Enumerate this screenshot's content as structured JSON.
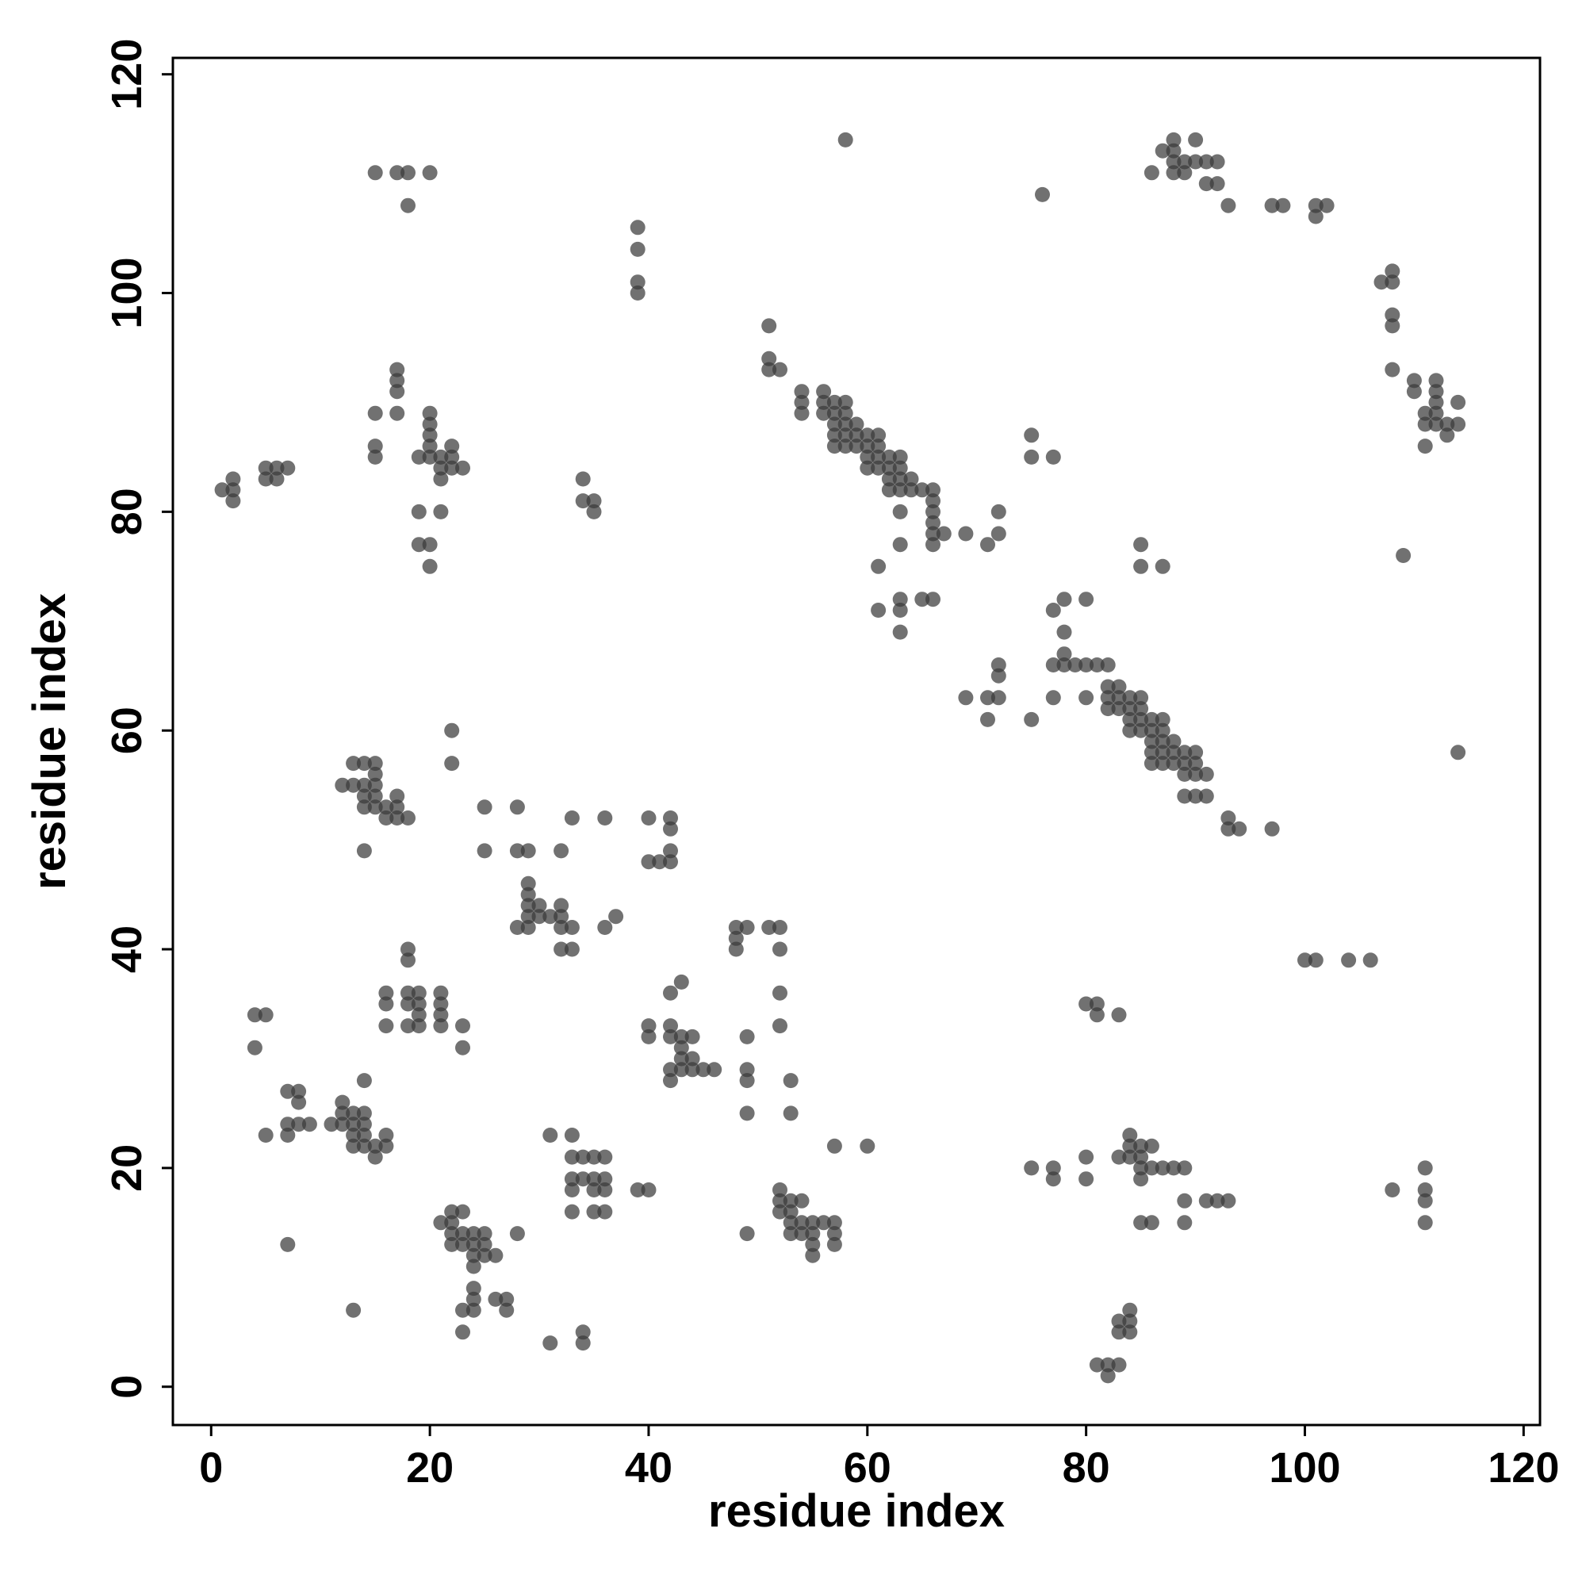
{
  "chart_data": {
    "type": "scatter",
    "title": "",
    "xlabel": "residue index",
    "ylabel": "residue index",
    "xlim": [
      -3.5,
      121.5
    ],
    "ylim": [
      -3.5,
      121.5
    ],
    "xticks": [
      "0",
      "20",
      "40",
      "60",
      "80",
      "100",
      "120"
    ],
    "yticks": [
      "0",
      "20",
      "40",
      "60",
      "80",
      "100",
      "120"
    ],
    "grid": false,
    "legend": "none",
    "point_color": "#3a3a3a",
    "points": [
      [
        58,
        114
      ],
      [
        15,
        111
      ],
      [
        17,
        111
      ],
      [
        18,
        111
      ],
      [
        20,
        111
      ],
      [
        18,
        108
      ],
      [
        76,
        109
      ],
      [
        39,
        106
      ],
      [
        39,
        104
      ],
      [
        39,
        101
      ],
      [
        39,
        100
      ],
      [
        51,
        97
      ],
      [
        51,
        94
      ],
      [
        51,
        93
      ],
      [
        52,
        93
      ],
      [
        54,
        91
      ],
      [
        54,
        90
      ],
      [
        54,
        89
      ],
      [
        56,
        91
      ],
      [
        56,
        90
      ],
      [
        56,
        89
      ],
      [
        57,
        90
      ],
      [
        57,
        89
      ],
      [
        57,
        88
      ],
      [
        57,
        87
      ],
      [
        57,
        86
      ],
      [
        58,
        90
      ],
      [
        58,
        89
      ],
      [
        58,
        88
      ],
      [
        58,
        87
      ],
      [
        58,
        86
      ],
      [
        59,
        88
      ],
      [
        59,
        87
      ],
      [
        59,
        86
      ],
      [
        60,
        87
      ],
      [
        60,
        86
      ],
      [
        60,
        85
      ],
      [
        60,
        84
      ],
      [
        61,
        87
      ],
      [
        61,
        86
      ],
      [
        61,
        85
      ],
      [
        61,
        84
      ],
      [
        62,
        85
      ],
      [
        62,
        84
      ],
      [
        62,
        83
      ],
      [
        62,
        82
      ],
      [
        63,
        85
      ],
      [
        63,
        84
      ],
      [
        63,
        83
      ],
      [
        63,
        82
      ],
      [
        63,
        80
      ],
      [
        64,
        83
      ],
      [
        64,
        82
      ],
      [
        65,
        82
      ],
      [
        66,
        82
      ],
      [
        66,
        81
      ],
      [
        66,
        80
      ],
      [
        66,
        79
      ],
      [
        66,
        78
      ],
      [
        66,
        77
      ],
      [
        67,
        78
      ],
      [
        69,
        78
      ],
      [
        71,
        77
      ],
      [
        72,
        80
      ],
      [
        72,
        78
      ],
      [
        61,
        75
      ],
      [
        61,
        71
      ],
      [
        63,
        72
      ],
      [
        63,
        71
      ],
      [
        63,
        69
      ],
      [
        63,
        77
      ],
      [
        65,
        72
      ],
      [
        66,
        72
      ],
      [
        15,
        89
      ],
      [
        15,
        86
      ],
      [
        15,
        85
      ],
      [
        17,
        93
      ],
      [
        17,
        92
      ],
      [
        17,
        91
      ],
      [
        17,
        89
      ],
      [
        19,
        85
      ],
      [
        20,
        89
      ],
      [
        20,
        88
      ],
      [
        20,
        87
      ],
      [
        20,
        86
      ],
      [
        20,
        85
      ],
      [
        21,
        85
      ],
      [
        21,
        84
      ],
      [
        21,
        83
      ],
      [
        22,
        86
      ],
      [
        22,
        85
      ],
      [
        22,
        84
      ],
      [
        23,
        84
      ],
      [
        19,
        80
      ],
      [
        21,
        80
      ],
      [
        19,
        77
      ],
      [
        20,
        77
      ],
      [
        20,
        75
      ],
      [
        1,
        82
      ],
      [
        2,
        83
      ],
      [
        2,
        82
      ],
      [
        2,
        81
      ],
      [
        5,
        84
      ],
      [
        5,
        83
      ],
      [
        6,
        84
      ],
      [
        6,
        83
      ],
      [
        7,
        84
      ],
      [
        34,
        83
      ],
      [
        34,
        81
      ],
      [
        35,
        81
      ],
      [
        35,
        80
      ],
      [
        75,
        87
      ],
      [
        75,
        85
      ],
      [
        77,
        85
      ],
      [
        85,
        77
      ],
      [
        85,
        75
      ],
      [
        87,
        75
      ],
      [
        87,
        113
      ],
      [
        88,
        114
      ],
      [
        88,
        113
      ],
      [
        88,
        112
      ],
      [
        88,
        111
      ],
      [
        89,
        112
      ],
      [
        89,
        111
      ],
      [
        90,
        114
      ],
      [
        90,
        112
      ],
      [
        91,
        112
      ],
      [
        91,
        110
      ],
      [
        92,
        112
      ],
      [
        92,
        110
      ],
      [
        93,
        108
      ],
      [
        86,
        111
      ],
      [
        97,
        108
      ],
      [
        98,
        108
      ],
      [
        101,
        108
      ],
      [
        101,
        107
      ],
      [
        102,
        108
      ],
      [
        107,
        101
      ],
      [
        108,
        102
      ],
      [
        108,
        101
      ],
      [
        108,
        98
      ],
      [
        108,
        97
      ],
      [
        108,
        93
      ],
      [
        110,
        92
      ],
      [
        110,
        91
      ],
      [
        111,
        89
      ],
      [
        111,
        88
      ],
      [
        111,
        86
      ],
      [
        112,
        92
      ],
      [
        112,
        91
      ],
      [
        112,
        90
      ],
      [
        112,
        89
      ],
      [
        112,
        88
      ],
      [
        113,
        88
      ],
      [
        113,
        87
      ],
      [
        114,
        90
      ],
      [
        114,
        88
      ],
      [
        109,
        76
      ],
      [
        77,
        71
      ],
      [
        78,
        72
      ],
      [
        80,
        72
      ],
      [
        77,
        66
      ],
      [
        77,
        63
      ],
      [
        78,
        69
      ],
      [
        78,
        67
      ],
      [
        78,
        66
      ],
      [
        79,
        66
      ],
      [
        80,
        66
      ],
      [
        80,
        63
      ],
      [
        81,
        66
      ],
      [
        82,
        66
      ],
      [
        82,
        64
      ],
      [
        82,
        63
      ],
      [
        82,
        62
      ],
      [
        83,
        64
      ],
      [
        83,
        63
      ],
      [
        83,
        62
      ],
      [
        84,
        63
      ],
      [
        84,
        62
      ],
      [
        84,
        61
      ],
      [
        84,
        60
      ],
      [
        85,
        63
      ],
      [
        85,
        62
      ],
      [
        85,
        61
      ],
      [
        85,
        60
      ],
      [
        86,
        61
      ],
      [
        86,
        60
      ],
      [
        86,
        59
      ],
      [
        86,
        58
      ],
      [
        86,
        57
      ],
      [
        87,
        61
      ],
      [
        87,
        60
      ],
      [
        87,
        59
      ],
      [
        87,
        58
      ],
      [
        87,
        57
      ],
      [
        88,
        59
      ],
      [
        88,
        58
      ],
      [
        88,
        57
      ],
      [
        89,
        58
      ],
      [
        89,
        57
      ],
      [
        89,
        56
      ],
      [
        89,
        54
      ],
      [
        90,
        58
      ],
      [
        90,
        57
      ],
      [
        90,
        56
      ],
      [
        90,
        54
      ],
      [
        91,
        56
      ],
      [
        91,
        54
      ],
      [
        93,
        52
      ],
      [
        93,
        51
      ],
      [
        94,
        51
      ],
      [
        97,
        51
      ],
      [
        75,
        61
      ],
      [
        69,
        63
      ],
      [
        71,
        63
      ],
      [
        71,
        61
      ],
      [
        72,
        66
      ],
      [
        72,
        65
      ],
      [
        72,
        63
      ],
      [
        114,
        58
      ],
      [
        22,
        60
      ],
      [
        22,
        57
      ],
      [
        12,
        55
      ],
      [
        13,
        57
      ],
      [
        13,
        55
      ],
      [
        14,
        57
      ],
      [
        14,
        55
      ],
      [
        14,
        54
      ],
      [
        14,
        53
      ],
      [
        15,
        57
      ],
      [
        15,
        56
      ],
      [
        15,
        55
      ],
      [
        15,
        54
      ],
      [
        15,
        53
      ],
      [
        16,
        53
      ],
      [
        16,
        52
      ],
      [
        17,
        54
      ],
      [
        17,
        53
      ],
      [
        17,
        52
      ],
      [
        18,
        52
      ],
      [
        14,
        49
      ],
      [
        25,
        53
      ],
      [
        25,
        49
      ],
      [
        28,
        53
      ],
      [
        28,
        49
      ],
      [
        29,
        49
      ],
      [
        29,
        46
      ],
      [
        29,
        45
      ],
      [
        29,
        44
      ],
      [
        29,
        43
      ],
      [
        29,
        42
      ],
      [
        28,
        42
      ],
      [
        30,
        44
      ],
      [
        30,
        43
      ],
      [
        31,
        43
      ],
      [
        32,
        49
      ],
      [
        32,
        44
      ],
      [
        32,
        43
      ],
      [
        32,
        42
      ],
      [
        32,
        40
      ],
      [
        33,
        42
      ],
      [
        33,
        40
      ],
      [
        33,
        52
      ],
      [
        36,
        52
      ],
      [
        36,
        42
      ],
      [
        37,
        43
      ],
      [
        40,
        52
      ],
      [
        40,
        48
      ],
      [
        41,
        48
      ],
      [
        42,
        52
      ],
      [
        42,
        51
      ],
      [
        42,
        49
      ],
      [
        42,
        48
      ],
      [
        48,
        42
      ],
      [
        48,
        41
      ],
      [
        48,
        40
      ],
      [
        49,
        42
      ],
      [
        51,
        42
      ],
      [
        52,
        42
      ],
      [
        52,
        40
      ],
      [
        52,
        36
      ],
      [
        52,
        33
      ],
      [
        100,
        39
      ],
      [
        101,
        39
      ],
      [
        104,
        39
      ],
      [
        106,
        39
      ],
      [
        18,
        40
      ],
      [
        18,
        39
      ],
      [
        16,
        36
      ],
      [
        16,
        35
      ],
      [
        16,
        33
      ],
      [
        18,
        36
      ],
      [
        18,
        35
      ],
      [
        18,
        33
      ],
      [
        19,
        36
      ],
      [
        19,
        35
      ],
      [
        19,
        34
      ],
      [
        19,
        33
      ],
      [
        21,
        36
      ],
      [
        21,
        35
      ],
      [
        21,
        34
      ],
      [
        21,
        33
      ],
      [
        23,
        33
      ],
      [
        23,
        31
      ],
      [
        4,
        34
      ],
      [
        4,
        31
      ],
      [
        5,
        34
      ],
      [
        40,
        33
      ],
      [
        40,
        32
      ],
      [
        42,
        36
      ],
      [
        42,
        33
      ],
      [
        42,
        32
      ],
      [
        42,
        29
      ],
      [
        42,
        28
      ],
      [
        43,
        37
      ],
      [
        43,
        32
      ],
      [
        43,
        31
      ],
      [
        43,
        30
      ],
      [
        43,
        29
      ],
      [
        44,
        32
      ],
      [
        44,
        30
      ],
      [
        44,
        29
      ],
      [
        45,
        29
      ],
      [
        46,
        29
      ],
      [
        49,
        32
      ],
      [
        49,
        29
      ],
      [
        49,
        28
      ],
      [
        49,
        25
      ],
      [
        53,
        28
      ],
      [
        53,
        25
      ],
      [
        80,
        35
      ],
      [
        81,
        35
      ],
      [
        81,
        34
      ],
      [
        83,
        34
      ],
      [
        7,
        27
      ],
      [
        8,
        27
      ],
      [
        8,
        26
      ],
      [
        7,
        24
      ],
      [
        7,
        23
      ],
      [
        8,
        24
      ],
      [
        9,
        24
      ],
      [
        5,
        23
      ],
      [
        11,
        24
      ],
      [
        12,
        26
      ],
      [
        12,
        25
      ],
      [
        12,
        24
      ],
      [
        13,
        25
      ],
      [
        13,
        24
      ],
      [
        13,
        23
      ],
      [
        13,
        22
      ],
      [
        14,
        28
      ],
      [
        14,
        25
      ],
      [
        14,
        24
      ],
      [
        14,
        23
      ],
      [
        14,
        22
      ],
      [
        15,
        22
      ],
      [
        15,
        21
      ],
      [
        16,
        23
      ],
      [
        16,
        22
      ],
      [
        31,
        23
      ],
      [
        33,
        23
      ],
      [
        33,
        21
      ],
      [
        33,
        19
      ],
      [
        33,
        18
      ],
      [
        33,
        16
      ],
      [
        34,
        21
      ],
      [
        34,
        19
      ],
      [
        35,
        21
      ],
      [
        35,
        19
      ],
      [
        35,
        18
      ],
      [
        35,
        16
      ],
      [
        36,
        21
      ],
      [
        36,
        19
      ],
      [
        36,
        18
      ],
      [
        36,
        16
      ],
      [
        39,
        18
      ],
      [
        40,
        18
      ],
      [
        57,
        22
      ],
      [
        60,
        22
      ],
      [
        75,
        20
      ],
      [
        77,
        20
      ],
      [
        77,
        19
      ],
      [
        80,
        21
      ],
      [
        80,
        19
      ],
      [
        83,
        21
      ],
      [
        84,
        23
      ],
      [
        84,
        22
      ],
      [
        84,
        21
      ],
      [
        85,
        22
      ],
      [
        85,
        21
      ],
      [
        85,
        20
      ],
      [
        85,
        19
      ],
      [
        85,
        15
      ],
      [
        86,
        22
      ],
      [
        86,
        20
      ],
      [
        86,
        15
      ],
      [
        87,
        20
      ],
      [
        88,
        20
      ],
      [
        89,
        20
      ],
      [
        89,
        17
      ],
      [
        89,
        15
      ],
      [
        91,
        17
      ],
      [
        92,
        17
      ],
      [
        93,
        17
      ],
      [
        108,
        18
      ],
      [
        111,
        20
      ],
      [
        111,
        18
      ],
      [
        111,
        17
      ],
      [
        111,
        15
      ],
      [
        7,
        13
      ],
      [
        13,
        7
      ],
      [
        21,
        15
      ],
      [
        22,
        16
      ],
      [
        22,
        15
      ],
      [
        22,
        14
      ],
      [
        22,
        13
      ],
      [
        23,
        16
      ],
      [
        23,
        14
      ],
      [
        23,
        13
      ],
      [
        23,
        7
      ],
      [
        23,
        5
      ],
      [
        24,
        14
      ],
      [
        24,
        13
      ],
      [
        24,
        12
      ],
      [
        24,
        11
      ],
      [
        24,
        9
      ],
      [
        24,
        8
      ],
      [
        24,
        7
      ],
      [
        25,
        14
      ],
      [
        25,
        13
      ],
      [
        25,
        12
      ],
      [
        26,
        12
      ],
      [
        26,
        8
      ],
      [
        27,
        8
      ],
      [
        27,
        7
      ],
      [
        28,
        14
      ],
      [
        31,
        4
      ],
      [
        34,
        5
      ],
      [
        34,
        4
      ],
      [
        49,
        14
      ],
      [
        52,
        18
      ],
      [
        52,
        17
      ],
      [
        52,
        16
      ],
      [
        53,
        17
      ],
      [
        53,
        16
      ],
      [
        53,
        15
      ],
      [
        53,
        14
      ],
      [
        54,
        17
      ],
      [
        54,
        15
      ],
      [
        54,
        14
      ],
      [
        55,
        15
      ],
      [
        55,
        14
      ],
      [
        55,
        13
      ],
      [
        55,
        12
      ],
      [
        56,
        15
      ],
      [
        57,
        15
      ],
      [
        57,
        14
      ],
      [
        57,
        13
      ],
      [
        81,
        2
      ],
      [
        82,
        2
      ],
      [
        82,
        1
      ],
      [
        83,
        6
      ],
      [
        83,
        5
      ],
      [
        83,
        2
      ],
      [
        84,
        7
      ],
      [
        84,
        6
      ],
      [
        84,
        5
      ]
    ]
  }
}
